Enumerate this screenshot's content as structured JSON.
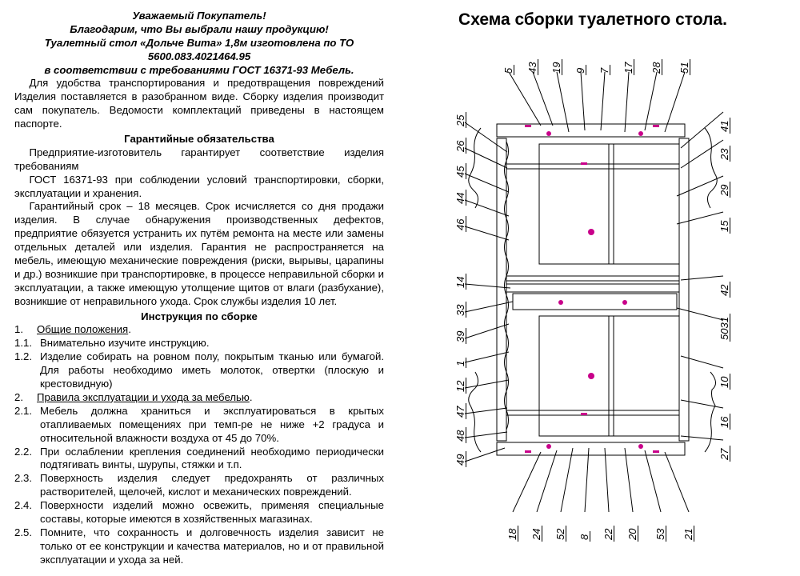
{
  "left": {
    "greeting": "Уважаемый Покупатель!",
    "thanks": "Благодарим, что Вы выбрали нашу продукцию!",
    "product_line1": "Туалетный стол «Дольче Вита» 1,8м изготовлена по ТО 5600.083.4021464.95",
    "product_line2": "в соответствии с требованиями ГОСТ 16371-93 Мебель.",
    "intro": "Для удобства транспортирования и предотвращения повреждений Изделия поставляется в разобранном виде. Сборку изделия производит сам покупатель. Ведомости комплектаций приведены в настоящем паспорте.",
    "warranty_head": "Гарантийные обязательства",
    "warranty_p1": "Предприятие-изготовитель гарантирует соответствие изделия требованиям",
    "warranty_p2": "ГОСТ 16371-93 при соблюдении условий транспортировки, сборки, эксплуатации и хранения.",
    "warranty_p3": "Гарантийный срок – 18 месяцев. Срок исчисляется со дня продажи изделия. В случае обнаружения производственных дефектов, предприятие обязуется устранить их путём ремонта на месте или замены отдельных деталей или изделия. Гарантия не распространяется на мебель, имеющую механические повреждения (риски, вырывы, царапины и др.) возникшие при транспортировке, в процессе неправильной сборки и эксплуатации, а также имеющую утолщение щитов от влаги (разбухание), возникшие от неправильного ухода. Срок службы изделия 10 лет.",
    "assembly_head": "Инструкция по сборке",
    "items": [
      {
        "n": "1.",
        "txt": "Общие положения",
        "u": true,
        "after": "."
      },
      {
        "n": "1.1.",
        "txt": "Внимательно изучите инструкцию."
      },
      {
        "n": "1.2.",
        "txt": "Изделие собирать на ровном полу, покрытым тканью или бумагой. Для работы необходимо иметь молоток, отвертки (плоскую и крестовидную)"
      },
      {
        "n": "2.",
        "txt": "Правила эксплуатации и ухода за мебелью",
        "u": true,
        "after": "."
      },
      {
        "n": "2.1.",
        "txt": "Мебель должна храниться и эксплуатироваться в крытых отапливаемых помещениях при темп-ре не ниже +2 градуса и относительной влажности воздуха от 45 до 70%."
      },
      {
        "n": "2.2.",
        "txt": "При ослаблении крепления соединений необходимо периодически подтягивать винты, шурупы, стяжки и т.п."
      },
      {
        "n": "2.3.",
        "txt": "Поверхность изделия следует предохранять от различных растворителей, щелочей, кислот и механических повреждений."
      },
      {
        "n": "2.4.",
        "txt": "Поверхности изделий можно освежить, применяя специальные составы, которые имеются в хозяйственных магазинах."
      },
      {
        "n": "2.5.",
        "txt": "Помните, что сохранность и долговечность изделия зависит не только от ее конструкции и качества материалов, но и от правильной эксплуатации и ухода за ней."
      }
    ]
  },
  "right": {
    "title": "Схема сборки туалетного стола.",
    "callouts_top": [
      "5",
      "43",
      "19",
      "9",
      "7",
      "17",
      "28",
      "51"
    ],
    "callouts_bottom": [
      "18",
      "24",
      "52",
      "8",
      "22",
      "20",
      "53",
      "21"
    ],
    "callouts_left": [
      "25",
      "26",
      "45",
      "44",
      "46",
      "14",
      "33",
      "39",
      "1",
      "12",
      "47",
      "48",
      "49"
    ],
    "callouts_right": [
      "41",
      "23",
      "29",
      "15",
      "42",
      "5031",
      "10",
      "16",
      "27"
    ]
  },
  "style": {
    "bg": "#ffffff",
    "text": "#000000",
    "line": "#000000",
    "accent": "#c8008a"
  }
}
